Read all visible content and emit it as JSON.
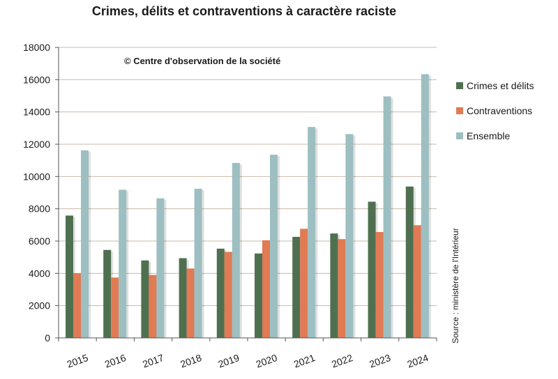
{
  "chart_data": {
    "type": "bar",
    "title": "Crimes, délits et contraventions à caractère raciste",
    "annotation": "© Centre d'observation de la  société",
    "source": "Source : ministère de l'Intérieur",
    "categories": [
      "2015",
      "2016",
      "2017",
      "2018",
      "2019",
      "2020",
      "2021",
      "2022",
      "2023",
      "2024"
    ],
    "series": [
      {
        "name": "Crimes et délits",
        "color": "#4f7050",
        "values": [
          7580,
          5450,
          4800,
          4940,
          5530,
          5230,
          6260,
          6470,
          8440,
          9380
        ]
      },
      {
        "name": "Contraventions",
        "color": "#e07b54",
        "values": [
          4010,
          3740,
          3900,
          4300,
          5330,
          6050,
          6760,
          6120,
          6560,
          6980
        ]
      },
      {
        "name": "Ensemble",
        "color": "#9dbfc1",
        "values": [
          11620,
          9180,
          8650,
          9240,
          10840,
          11350,
          13070,
          12630,
          14960,
          16340
        ]
      }
    ],
    "ylim": [
      0,
      18000
    ],
    "yticks": [
      0,
      2000,
      4000,
      6000,
      8000,
      10000,
      12000,
      14000,
      16000,
      18000
    ],
    "grid": true,
    "legend_position": "right"
  }
}
